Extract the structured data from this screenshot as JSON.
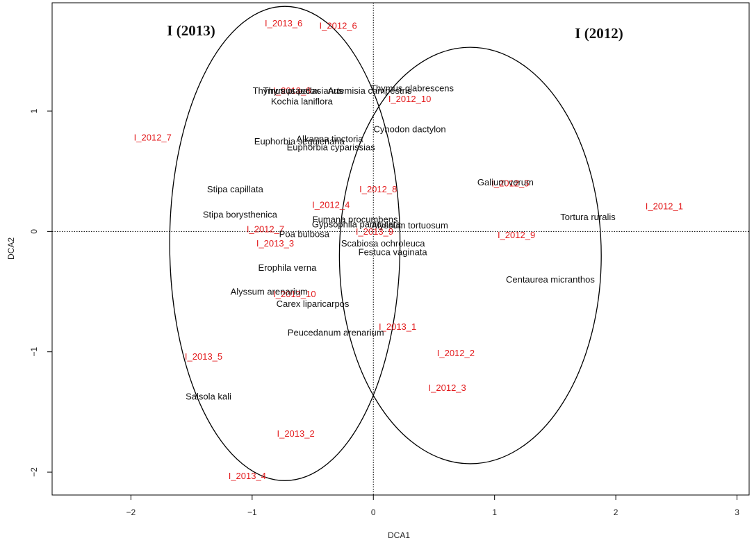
{
  "chart_data": {
    "type": "scatter",
    "title": "",
    "xlabel": "DCA1",
    "ylabel": "DCA2",
    "xlim": [
      -2.65,
      3.1
    ],
    "ylim": [
      -2.19,
      1.9
    ],
    "x_ticks": [
      -2,
      -1,
      0,
      1,
      2,
      3
    ],
    "y_ticks": [
      -2,
      -1,
      0,
      1
    ],
    "x_tick_labels": [
      "−2",
      "−1",
      "0",
      "1",
      "2",
      "3"
    ],
    "y_tick_labels": [
      "−2",
      "−1",
      "0",
      "1"
    ],
    "reference_lines": {
      "x": 0,
      "y": 0,
      "style": "dotted"
    },
    "grid": false,
    "groups": [
      {
        "label": "I (2013)",
        "center": [
          -0.73,
          -0.1
        ],
        "radius_x": 0.95,
        "radius_y": 1.97
      },
      {
        "label": "I (2012)",
        "center": [
          0.8,
          -0.2
        ],
        "radius_x": 1.08,
        "radius_y": 1.73
      }
    ],
    "series": [
      {
        "name": "",
        "color": "#e31a1c",
        "points": [
          {
            "label": "I_2013_6",
            "x": -0.74,
            "y": 1.73
          },
          {
            "label": "I_2012_6",
            "x": -0.29,
            "y": 1.71
          },
          {
            "label": "I_2013_8",
            "x": -0.67,
            "y": 1.17
          },
          {
            "label": "I_2012_10",
            "x": 0.3,
            "y": 1.1
          },
          {
            "label": "I_2012_7",
            "x": -1.82,
            "y": 0.78
          },
          {
            "label": "I_2012_8",
            "x": 0.04,
            "y": 0.35
          },
          {
            "label": "I_2012_5",
            "x": 1.13,
            "y": 0.4
          },
          {
            "label": "I_2012_4",
            "x": -0.35,
            "y": 0.22
          },
          {
            "label": "I_2012_1",
            "x": 2.4,
            "y": 0.21
          },
          {
            "label": "I_2012_7",
            "x": -0.89,
            "y": 0.02
          },
          {
            "label": "I_2013_9",
            "x": 0.01,
            "y": 0.0
          },
          {
            "label": "I_2012_9",
            "x": 1.18,
            "y": -0.03
          },
          {
            "label": "I_2013_3",
            "x": -0.81,
            "y": -0.1
          },
          {
            "label": "I_2013_10",
            "x": -0.65,
            "y": -0.52
          },
          {
            "label": "I_2013_1",
            "x": 0.2,
            "y": -0.79
          },
          {
            "label": "I_2012_2",
            "x": 0.68,
            "y": -1.01
          },
          {
            "label": "I_2013_5",
            "x": -1.4,
            "y": -1.04
          },
          {
            "label": "I_2012_3",
            "x": 0.61,
            "y": -1.3
          },
          {
            "label": "I_2013_2",
            "x": -0.64,
            "y": -1.68
          },
          {
            "label": "I_2013_4",
            "x": -1.04,
            "y": -2.03
          }
        ]
      },
      {
        "name": "",
        "color": "#111111",
        "points": [
          {
            "label": "Thymus pallasianus",
            "x": -0.58,
            "y": 1.17
          },
          {
            "label": "Thymus praecox",
            "x": -0.72,
            "y": 1.17
          },
          {
            "label": "Artemisia campestris",
            "x": -0.03,
            "y": 1.17
          },
          {
            "label": "Thymus glabrescens",
            "x": 0.32,
            "y": 1.19
          },
          {
            "label": "Kochia laniflora",
            "x": -0.59,
            "y": 1.08
          },
          {
            "label": "Cynodon dactylon",
            "x": 0.3,
            "y": 0.85
          },
          {
            "label": "Alkanna tinctoria",
            "x": -0.36,
            "y": 0.77
          },
          {
            "label": "Euphorbia seguieriana",
            "x": -0.61,
            "y": 0.75
          },
          {
            "label": "Euphorbia cyparissias",
            "x": -0.35,
            "y": 0.7
          },
          {
            "label": "Galium verum",
            "x": 1.09,
            "y": 0.41
          },
          {
            "label": "Stipa capillata",
            "x": -1.14,
            "y": 0.35
          },
          {
            "label": "Tortura ruralis",
            "x": 1.77,
            "y": 0.12
          },
          {
            "label": "Stipa borysthenica",
            "x": -1.1,
            "y": 0.14
          },
          {
            "label": "Fumana procumbens",
            "x": -0.15,
            "y": 0.1
          },
          {
            "label": "Gypsophila paniculata",
            "x": -0.14,
            "y": 0.06
          },
          {
            "label": "Alyssum tortuosum",
            "x": 0.3,
            "y": 0.05
          },
          {
            "label": "Poa bulbosa",
            "x": -0.57,
            "y": -0.02
          },
          {
            "label": "Scabiosa ochroleuca",
            "x": 0.08,
            "y": -0.1
          },
          {
            "label": "Festuca vaginata",
            "x": 0.16,
            "y": -0.17
          },
          {
            "label": "Erophila verna",
            "x": -0.71,
            "y": -0.3
          },
          {
            "label": "Centaurea micranthos",
            "x": 1.46,
            "y": -0.4
          },
          {
            "label": "Alyssum arenarium",
            "x": -0.86,
            "y": -0.5
          },
          {
            "label": "Carex liparicarpos",
            "x": -0.5,
            "y": -0.6
          },
          {
            "label": "Peucedanum arenarium",
            "x": -0.31,
            "y": -0.84
          },
          {
            "label": "Salsola kali",
            "x": -1.36,
            "y": -1.37
          }
        ]
      }
    ]
  }
}
